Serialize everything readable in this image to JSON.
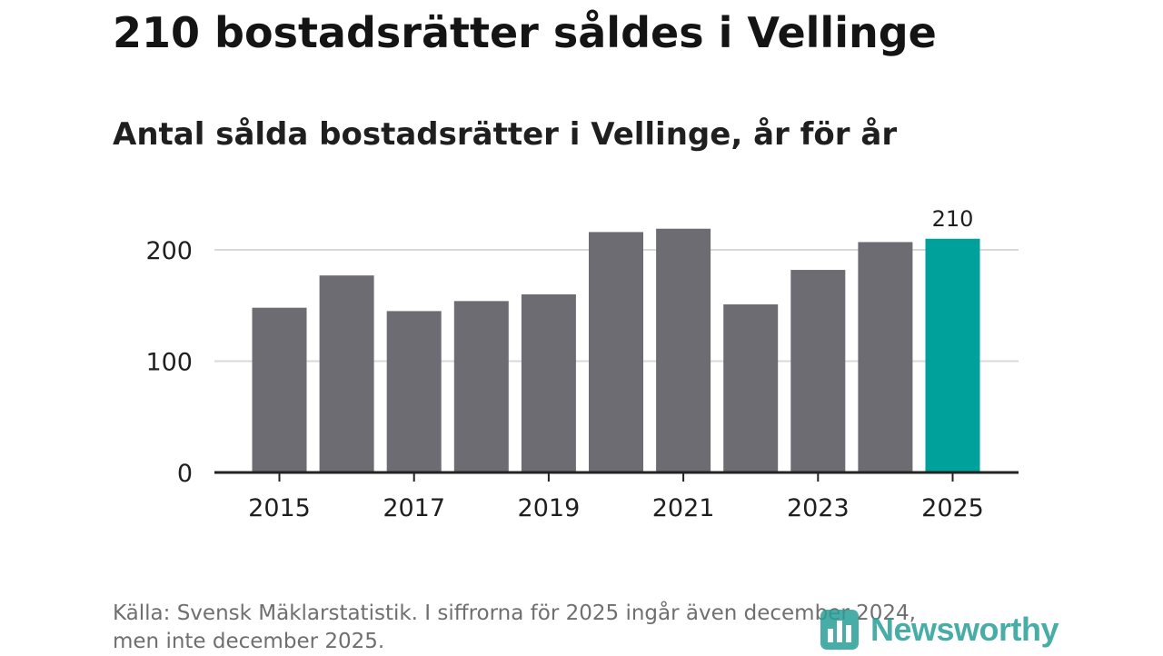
{
  "title": "210 bostadsrätter såldes i Vellinge",
  "subtitle": "Antal sålda bostadsrätter i Vellinge, år för år",
  "footer": {
    "line1": "Källa: Svensk Mäklarstatistik. I siffrorna för 2025 ingår även december 2024,",
    "line2": "men inte december 2025."
  },
  "logo": {
    "text": "Newsworthy",
    "icon": "bar-chart-icon"
  },
  "colors": {
    "bar": "#6d6c72",
    "highlight": "#00a19a",
    "grid": "#d9d9d9",
    "axis": "#222222",
    "text": "#1f1f1f"
  },
  "chart_data": {
    "type": "bar",
    "title": "Antal sålda bostadsrätter i Vellinge, år för år",
    "categories": [
      "2015",
      "2016",
      "2017",
      "2018",
      "2019",
      "2020",
      "2021",
      "2022",
      "2023",
      "2024",
      "2025"
    ],
    "values": [
      148,
      177,
      145,
      154,
      160,
      216,
      219,
      151,
      182,
      207,
      210
    ],
    "highlight_index": 10,
    "value_labels": {
      "10": "210"
    },
    "x_tick_labels": [
      "2015",
      "2017",
      "2019",
      "2021",
      "2023",
      "2025"
    ],
    "y_ticks": [
      0,
      100,
      200
    ],
    "y_tick_labels": [
      "0",
      "100",
      "200"
    ],
    "ylim": [
      0,
      220
    ],
    "grid": true,
    "xlabel": "",
    "ylabel": ""
  }
}
